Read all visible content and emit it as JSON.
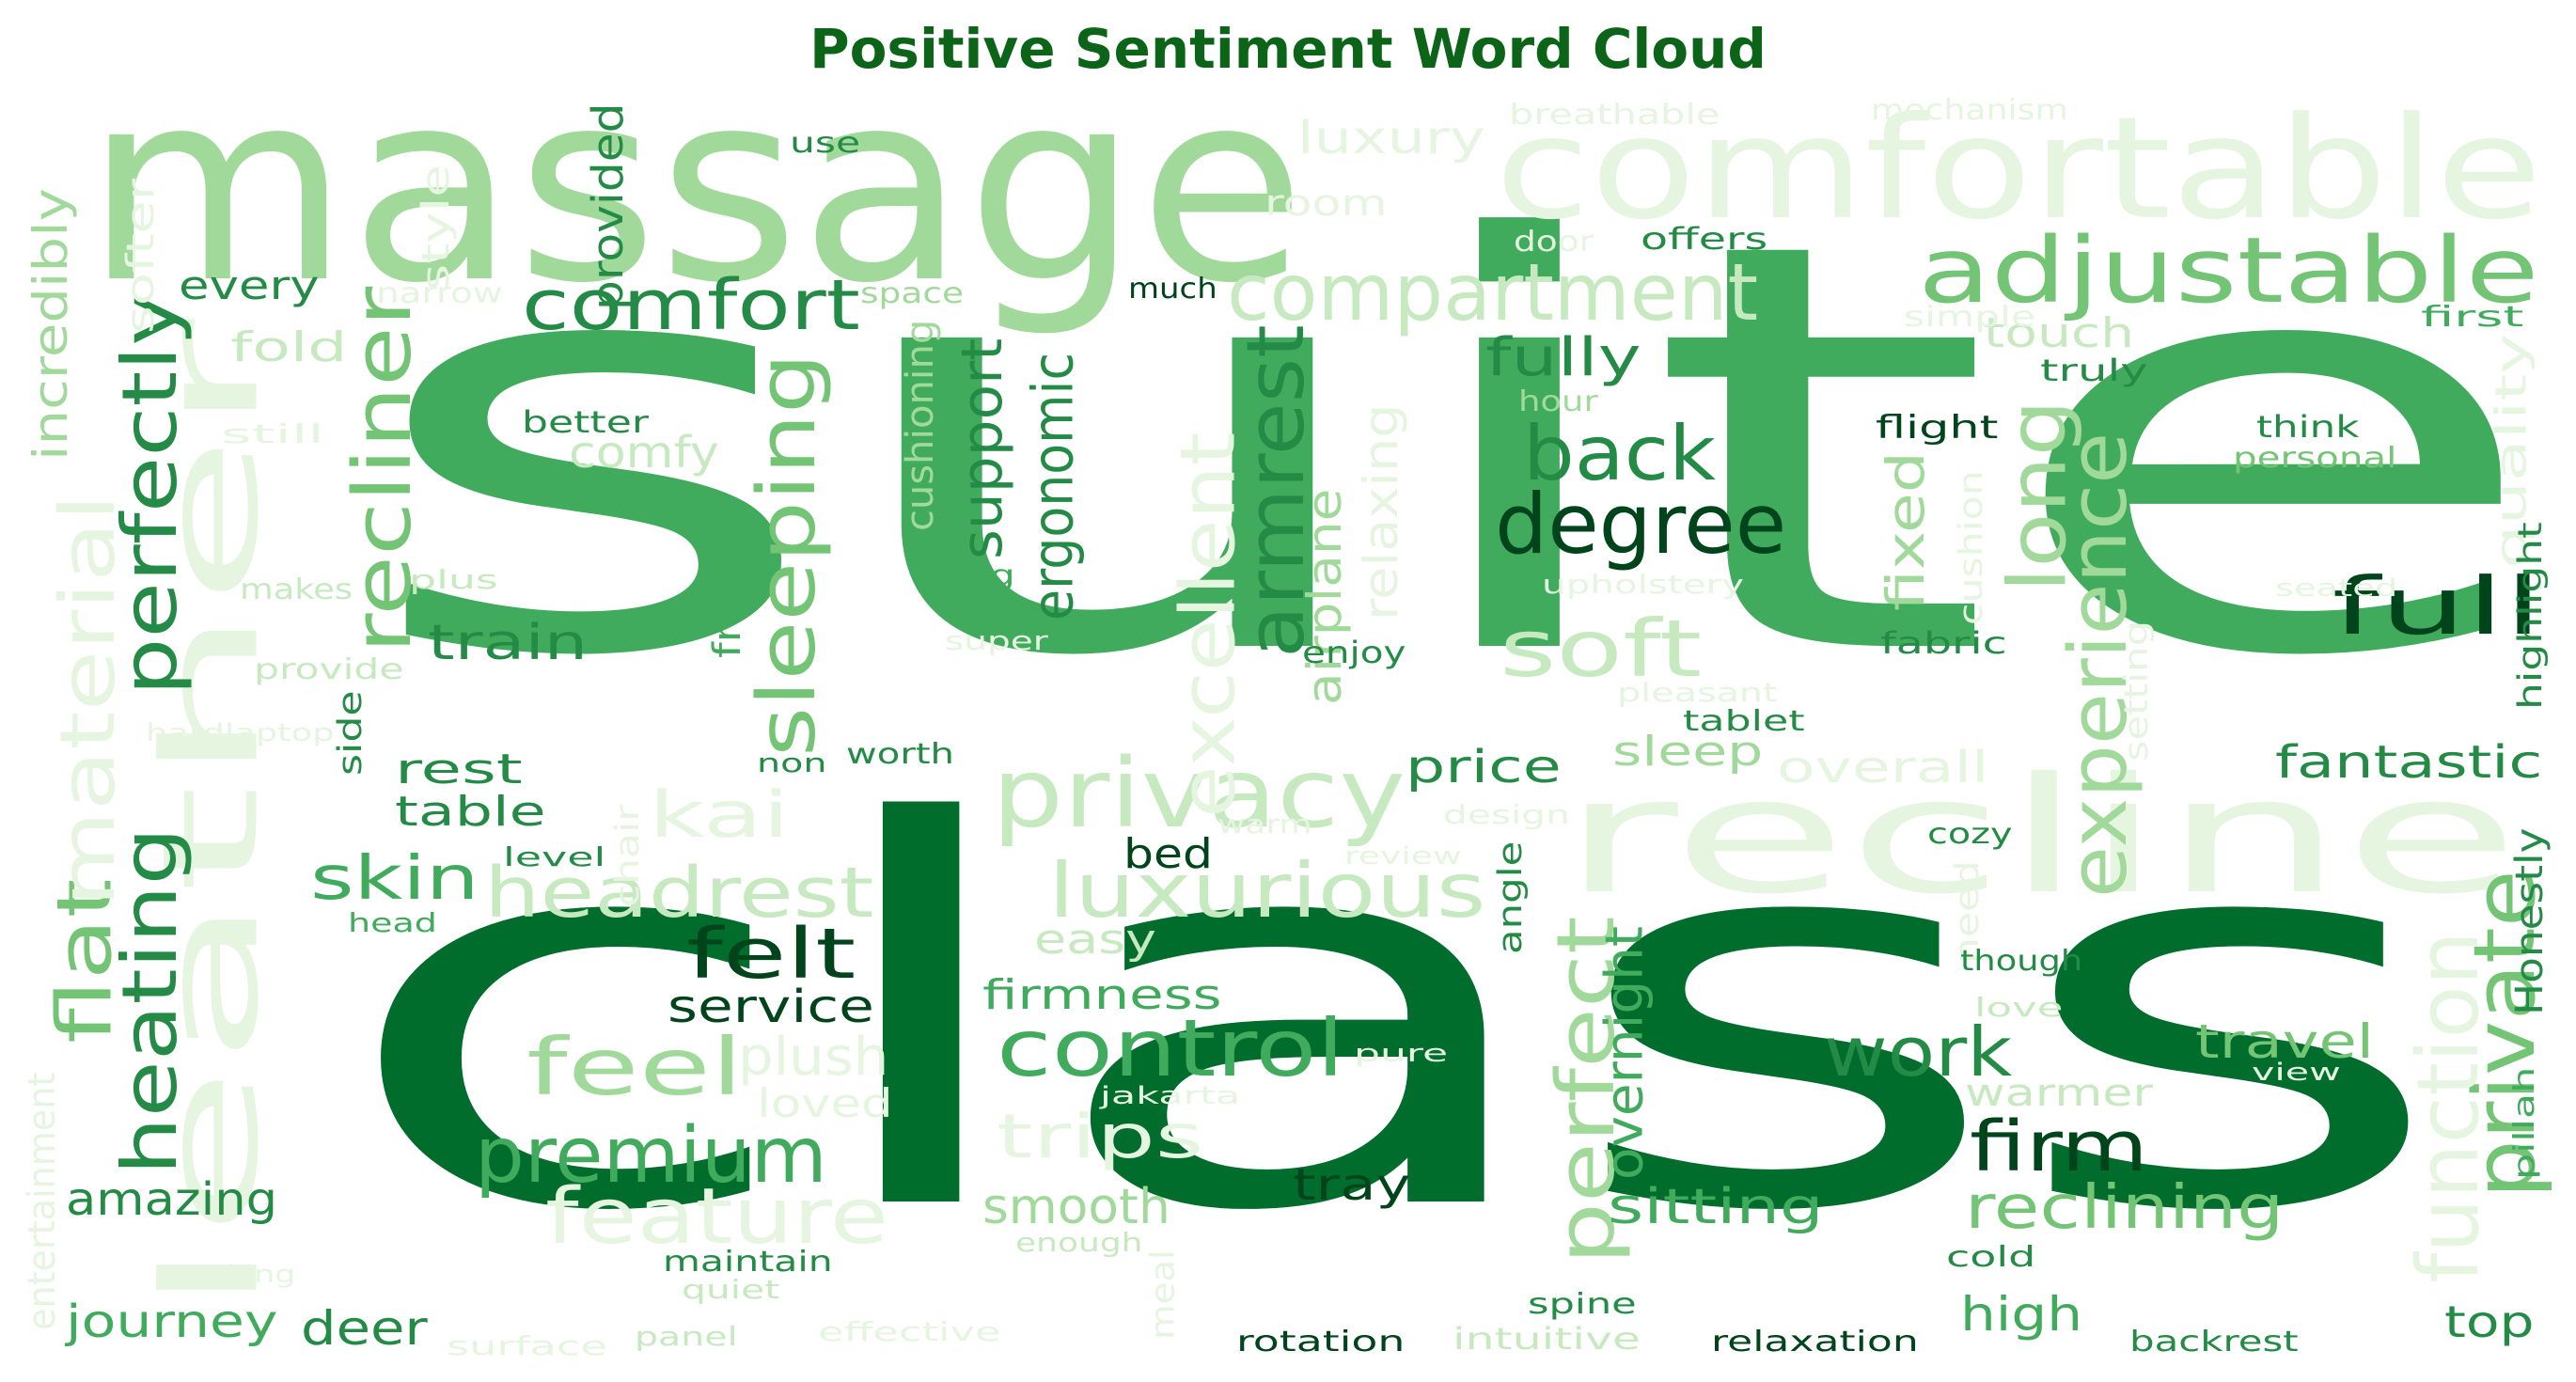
{
  "title": "Positive Sentiment Word Cloud",
  "palette": {
    "w": "#e5f5e0",
    "l": "#c7e9c0",
    "m": "#a1d99b",
    "g": "#74c476",
    "d": "#41ab5d",
    "e": "#238b45",
    "x": "#006d2c",
    "z": "#00441b"
  },
  "words": [
    {
      "text": "suite",
      "tone": "d"
    },
    {
      "text": "class",
      "tone": "x"
    },
    {
      "text": "massage",
      "tone": "m"
    },
    {
      "text": "leather",
      "tone": "w"
    },
    {
      "text": "comfortable",
      "tone": "w"
    },
    {
      "text": "recline",
      "tone": "w"
    },
    {
      "text": "adjustable",
      "tone": "g"
    },
    {
      "text": "compartment",
      "tone": "l"
    },
    {
      "text": "comfort",
      "tone": "e"
    },
    {
      "text": "degree",
      "tone": "z"
    },
    {
      "text": "back",
      "tone": "e"
    },
    {
      "text": "full",
      "tone": "z"
    },
    {
      "text": "soft",
      "tone": "l"
    },
    {
      "text": "privacy",
      "tone": "l"
    },
    {
      "text": "luxurious",
      "tone": "l"
    },
    {
      "text": "headrest",
      "tone": "l"
    },
    {
      "text": "control",
      "tone": "d"
    },
    {
      "text": "premium",
      "tone": "d"
    },
    {
      "text": "felt",
      "tone": "z"
    },
    {
      "text": "feel",
      "tone": "m"
    },
    {
      "text": "feature",
      "tone": "w"
    },
    {
      "text": "work",
      "tone": "e"
    },
    {
      "text": "firm",
      "tone": "z"
    },
    {
      "text": "reclining",
      "tone": "g"
    },
    {
      "text": "experience",
      "tone": "m"
    },
    {
      "text": "private",
      "tone": "g"
    },
    {
      "text": "function",
      "tone": "w"
    },
    {
      "text": "sleeping",
      "tone": "g"
    },
    {
      "text": "recliner",
      "tone": "g"
    },
    {
      "text": "perfectly",
      "tone": "e"
    },
    {
      "text": "heating",
      "tone": "e"
    },
    {
      "text": "flat",
      "tone": "g"
    },
    {
      "text": "material",
      "tone": "w"
    },
    {
      "text": "armrest",
      "tone": "e"
    },
    {
      "text": "excellent",
      "tone": "w"
    },
    {
      "text": "perfect",
      "tone": "m"
    },
    {
      "text": "long",
      "tone": "m"
    },
    {
      "text": "trips",
      "tone": "w"
    },
    {
      "text": "plush",
      "tone": "w"
    },
    {
      "text": "skin",
      "tone": "d"
    },
    {
      "text": "kai",
      "tone": "w"
    },
    {
      "text": "train",
      "tone": "e"
    },
    {
      "text": "fully",
      "tone": "e"
    },
    {
      "text": "sitting",
      "tone": "d"
    },
    {
      "text": "fantastic",
      "tone": "e"
    },
    {
      "text": "travel",
      "tone": "g"
    },
    {
      "text": "smooth",
      "tone": "m"
    },
    {
      "text": "service",
      "tone": "z"
    },
    {
      "text": "firmness",
      "tone": "d"
    },
    {
      "text": "journey",
      "tone": "d"
    },
    {
      "text": "amazing",
      "tone": "e"
    },
    {
      "text": "deer",
      "tone": "e"
    },
    {
      "text": "high",
      "tone": "d"
    },
    {
      "text": "tray",
      "tone": "z"
    },
    {
      "text": "bed",
      "tone": "z"
    },
    {
      "text": "price",
      "tone": "e"
    },
    {
      "text": "overall",
      "tone": "w"
    },
    {
      "text": "sleep",
      "tone": "m"
    },
    {
      "text": "rest",
      "tone": "e"
    },
    {
      "text": "table",
      "tone": "e"
    },
    {
      "text": "support",
      "tone": "e"
    },
    {
      "text": "ergonomic",
      "tone": "e"
    },
    {
      "text": "comfy",
      "tone": "l"
    },
    {
      "text": "fold",
      "tone": "l"
    },
    {
      "text": "every",
      "tone": "e"
    },
    {
      "text": "touch",
      "tone": "l"
    },
    {
      "text": "room",
      "tone": "w"
    },
    {
      "text": "luxury",
      "tone": "w"
    },
    {
      "text": "fixed",
      "tone": "m"
    },
    {
      "text": "warmer",
      "tone": "l"
    },
    {
      "text": "top",
      "tone": "e"
    },
    {
      "text": "overnight",
      "tone": "d"
    },
    {
      "text": "airplane",
      "tone": "m"
    },
    {
      "text": "relaxing",
      "tone": "w"
    },
    {
      "text": "easy",
      "tone": "l"
    },
    {
      "text": "loved",
      "tone": "w"
    },
    {
      "text": "incredibly",
      "tone": "m"
    },
    {
      "text": "softer",
      "tone": "w"
    },
    {
      "text": "style",
      "tone": "w"
    },
    {
      "text": "provided",
      "tone": "e"
    },
    {
      "text": "use",
      "tone": "e"
    },
    {
      "text": "breathable",
      "tone": "w"
    },
    {
      "text": "mechanism",
      "tone": "w"
    },
    {
      "text": "offers",
      "tone": "e"
    },
    {
      "text": "door",
      "tone": "w"
    },
    {
      "text": "much",
      "tone": "z"
    },
    {
      "text": "space",
      "tone": "m"
    },
    {
      "text": "narrow",
      "tone": "w"
    },
    {
      "text": "simple",
      "tone": "w"
    },
    {
      "text": "first",
      "tone": "d"
    },
    {
      "text": "truly",
      "tone": "e"
    },
    {
      "text": "quality",
      "tone": "w"
    },
    {
      "text": "hour",
      "tone": "m"
    },
    {
      "text": "flight",
      "tone": "z"
    },
    {
      "text": "think",
      "tone": "e"
    },
    {
      "text": "personal",
      "tone": "g"
    },
    {
      "text": "cushion",
      "tone": "w"
    },
    {
      "text": "upholstery",
      "tone": "w"
    },
    {
      "text": "highlight",
      "tone": "e"
    },
    {
      "text": "better",
      "tone": "e"
    },
    {
      "text": "still",
      "tone": "w"
    },
    {
      "text": "cushioning",
      "tone": "m"
    },
    {
      "text": "friendly",
      "tone": "d"
    },
    {
      "text": "leg",
      "tone": "d"
    },
    {
      "text": "makes",
      "tone": "l"
    },
    {
      "text": "plus",
      "tone": "l"
    },
    {
      "text": "provide",
      "tone": "l"
    },
    {
      "text": "super",
      "tone": "w"
    },
    {
      "text": "enjoy",
      "tone": "e"
    },
    {
      "text": "fabric",
      "tone": "e"
    },
    {
      "text": "pleasant",
      "tone": "w"
    },
    {
      "text": "tablet",
      "tone": "e"
    },
    {
      "text": "hardlaptop",
      "tone": "w"
    },
    {
      "text": "side",
      "tone": "e"
    },
    {
      "text": "non",
      "tone": "e"
    },
    {
      "text": "worth",
      "tone": "e"
    },
    {
      "text": "setting",
      "tone": "w"
    },
    {
      "text": "design",
      "tone": "w"
    },
    {
      "text": "warm",
      "tone": "w"
    },
    {
      "text": "chair",
      "tone": "w"
    },
    {
      "text": "level",
      "tone": "e"
    },
    {
      "text": "review",
      "tone": "w"
    },
    {
      "text": "cozy",
      "tone": "e"
    },
    {
      "text": "head",
      "tone": "d"
    },
    {
      "text": "angle",
      "tone": "e"
    },
    {
      "text": "need",
      "tone": "w"
    },
    {
      "text": "Honestly",
      "tone": "e"
    },
    {
      "text": "though",
      "tone": "e"
    },
    {
      "text": "love",
      "tone": "l"
    },
    {
      "text": "pure",
      "tone": "w"
    },
    {
      "text": "jakarta",
      "tone": "w"
    },
    {
      "text": "view",
      "tone": "w"
    },
    {
      "text": "pillah",
      "tone": "d"
    },
    {
      "text": "enough",
      "tone": "l"
    },
    {
      "text": "entertainment",
      "tone": "w"
    },
    {
      "text": "making",
      "tone": "w"
    },
    {
      "text": "maintain",
      "tone": "e"
    },
    {
      "text": "quiet",
      "tone": "l"
    },
    {
      "text": "meal",
      "tone": "w"
    },
    {
      "text": "cold",
      "tone": "e"
    },
    {
      "text": "spine",
      "tone": "e"
    },
    {
      "text": "surface",
      "tone": "w"
    },
    {
      "text": "panel",
      "tone": "l"
    },
    {
      "text": "effective",
      "tone": "w"
    },
    {
      "text": "rotation",
      "tone": "z"
    },
    {
      "text": "intuitive",
      "tone": "l"
    },
    {
      "text": "relaxation",
      "tone": "z"
    },
    {
      "text": "backrest",
      "tone": "e"
    },
    {
      "text": "seated",
      "tone": "w"
    }
  ]
}
